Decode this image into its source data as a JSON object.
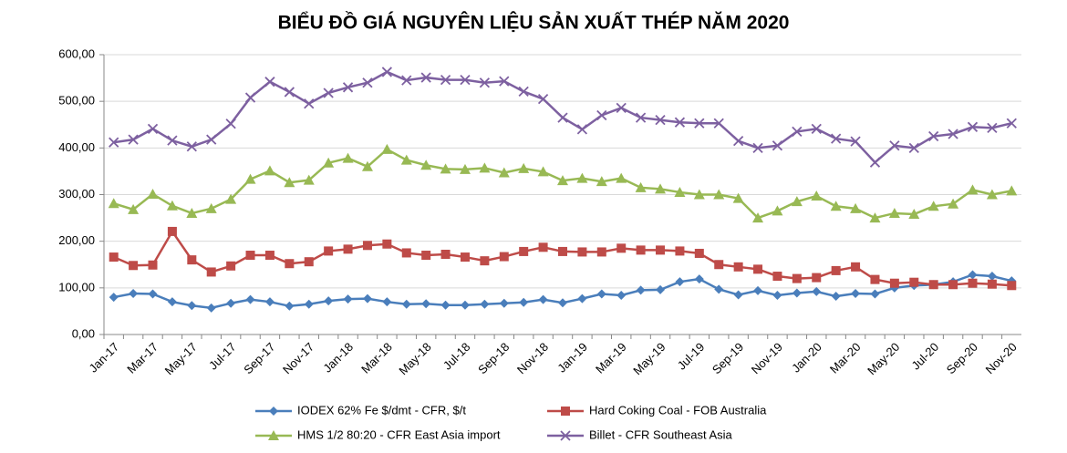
{
  "chart_data": {
    "type": "line",
    "title": "BIỂU ĐỒ GIÁ NGUYÊN LIỆU SẢN XUẤT THÉP NĂM 2020",
    "categories": [
      "Jan-17",
      null,
      "Mar-17",
      null,
      "May-17",
      null,
      "Jul-17",
      null,
      "Sep-17",
      null,
      "Nov-17",
      null,
      "Jan-18",
      null,
      "Mar-18",
      null,
      "May-18",
      null,
      "Jul-18",
      null,
      "Sep-18",
      null,
      "Nov-18",
      null,
      "Jan-19",
      null,
      "Mar-19",
      null,
      "May-19",
      null,
      "Jul-19",
      null,
      "Sep-19",
      null,
      "Nov-19",
      null,
      "Jan-20",
      null,
      "Mar-20",
      null,
      "May-20",
      null,
      "Jul-20",
      null,
      "Sep-20",
      null,
      "Nov-20"
    ],
    "series": [
      {
        "name": "IODEX 62% Fe $/dmt - CFR, $/t",
        "color": "#4a7ebb",
        "marker": "diamond",
        "values": [
          80,
          88,
          87,
          70,
          62,
          57,
          67,
          75,
          70,
          61,
          65,
          72,
          76,
          77,
          70,
          65,
          66,
          63,
          63,
          65,
          67,
          69,
          75,
          68,
          77,
          87,
          84,
          95,
          96,
          113,
          119,
          97,
          85,
          94,
          84,
          89,
          92,
          82,
          88,
          87,
          100,
          105,
          107,
          113,
          128,
          125,
          115
        ]
      },
      {
        "name": "Hard Coking Coal - FOB Australia",
        "color": "#be4b48",
        "marker": "square",
        "values": [
          166,
          148,
          149,
          221,
          160,
          134,
          147,
          170,
          170,
          152,
          156,
          179,
          183,
          191,
          194,
          175,
          170,
          172,
          166,
          158,
          167,
          178,
          187,
          178,
          177,
          177,
          185,
          181,
          181,
          179,
          174,
          150,
          145,
          140,
          125,
          120,
          122,
          137,
          145,
          118,
          110,
          112,
          107,
          107,
          110,
          108,
          105
        ]
      },
      {
        "name": "HMS 1/2 80:20 - CFR East Asia import",
        "color": "#98b954",
        "marker": "triangle",
        "values": [
          281,
          268,
          301,
          276,
          260,
          270,
          290,
          333,
          351,
          326,
          331,
          368,
          378,
          360,
          397,
          374,
          363,
          355,
          354,
          357,
          347,
          356,
          349,
          330,
          335,
          328,
          335,
          315,
          312,
          305,
          300,
          300,
          292,
          250,
          265,
          285,
          297,
          275,
          270,
          250,
          260,
          258,
          275,
          280,
          310,
          300,
          308
        ]
      },
      {
        "name": "Billet - CFR Southeast Asia",
        "color": "#7d60a0",
        "marker": "x",
        "values": [
          412,
          418,
          441,
          416,
          403,
          418,
          452,
          508,
          542,
          520,
          495,
          518,
          530,
          540,
          563,
          545,
          551,
          546,
          546,
          540,
          543,
          521,
          505,
          465,
          440,
          470,
          486,
          465,
          460,
          455,
          453,
          453,
          415,
          400,
          405,
          435,
          441,
          420,
          414,
          369,
          405,
          400,
          425,
          430,
          445,
          443,
          453
        ]
      }
    ],
    "ylim": [
      0,
      600
    ],
    "yticks": [
      {
        "value": 0,
        "label": "0,00"
      },
      {
        "value": 100,
        "label": "100,00"
      },
      {
        "value": 200,
        "label": "200,00"
      },
      {
        "value": 300,
        "label": "300,00"
      },
      {
        "value": 400,
        "label": "400,00"
      },
      {
        "value": 500,
        "label": "500,00"
      },
      {
        "value": 600,
        "label": "600,00"
      }
    ],
    "grid": true
  }
}
